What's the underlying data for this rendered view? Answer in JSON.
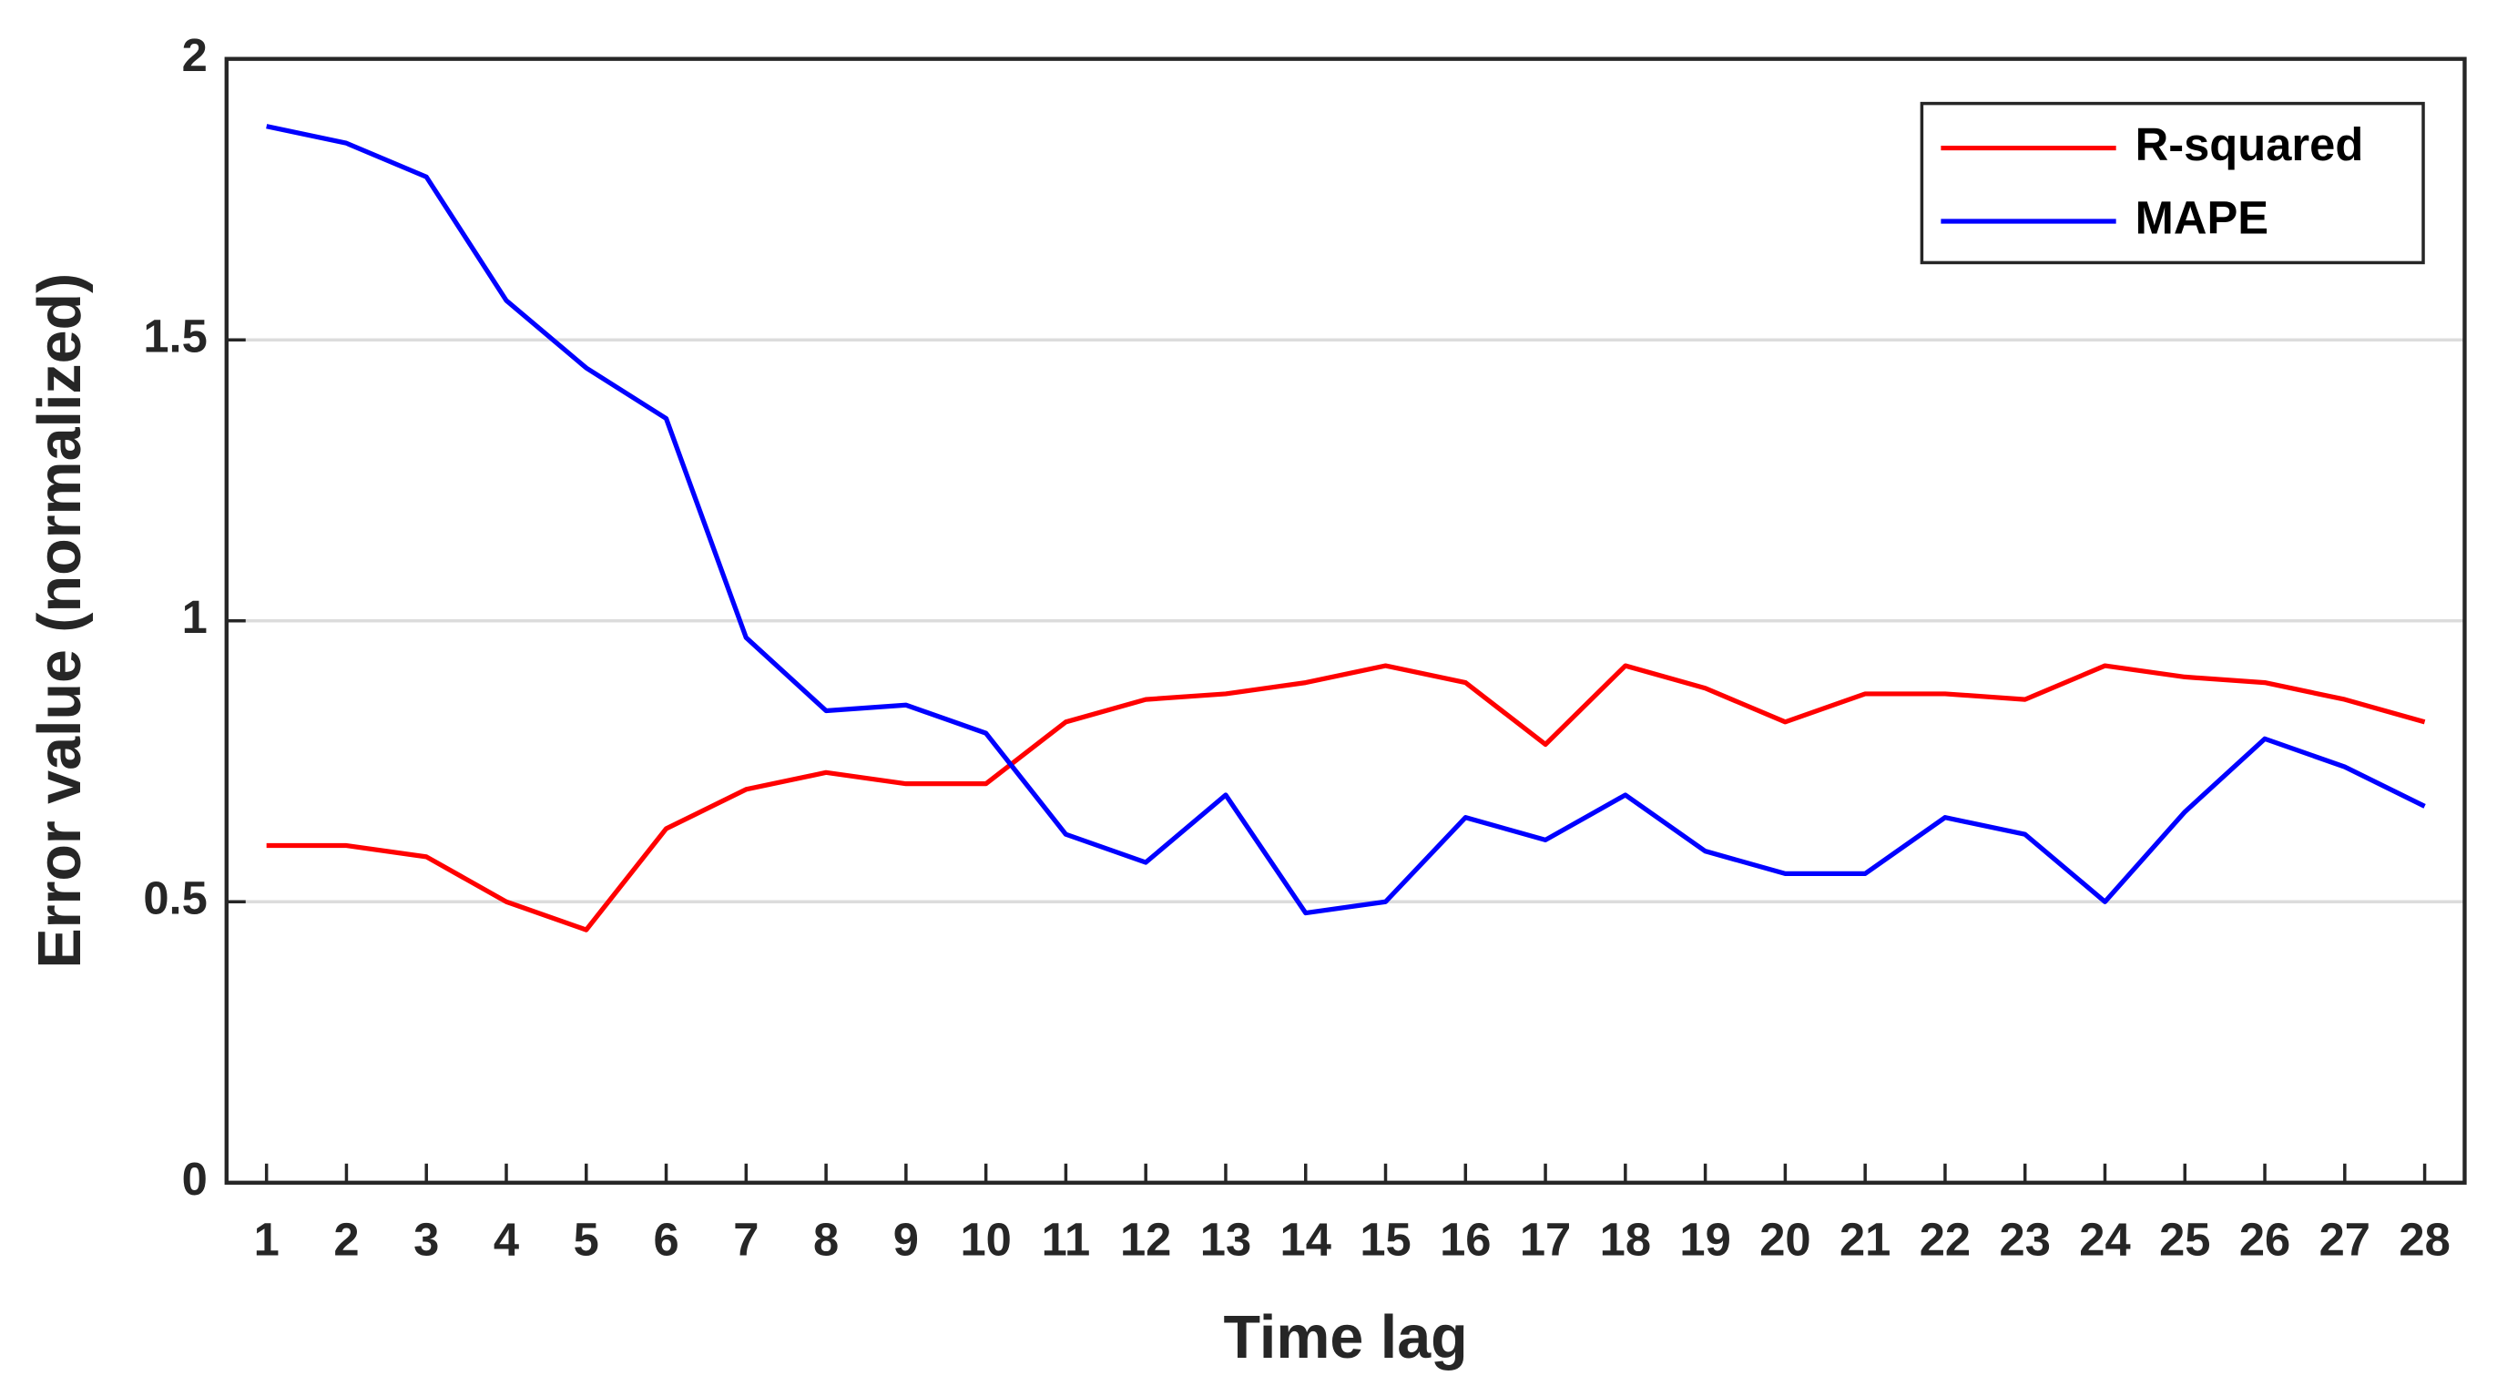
{
  "chart_data": {
    "type": "line",
    "xlabel": "Time lag",
    "ylabel": "Error value (normalized)",
    "x": [
      1,
      2,
      3,
      4,
      5,
      6,
      7,
      8,
      9,
      10,
      11,
      12,
      13,
      14,
      15,
      16,
      17,
      18,
      19,
      20,
      21,
      22,
      23,
      24,
      25,
      26,
      27,
      28
    ],
    "series": [
      {
        "name": "R-squared",
        "color": "#ff0000",
        "values": [
          0.6,
          0.6,
          0.58,
          0.5,
          0.45,
          0.63,
          0.7,
          0.73,
          0.71,
          0.71,
          0.82,
          0.86,
          0.87,
          0.89,
          0.92,
          0.89,
          0.78,
          0.92,
          0.88,
          0.82,
          0.87,
          0.87,
          0.86,
          0.92,
          0.9,
          0.89,
          0.86,
          0.82
        ]
      },
      {
        "name": "MAPE",
        "color": "#0000ff",
        "values": [
          1.88,
          1.85,
          1.79,
          1.57,
          1.45,
          1.36,
          0.97,
          0.84,
          0.85,
          0.8,
          0.62,
          0.57,
          0.69,
          0.48,
          0.5,
          0.65,
          0.61,
          0.69,
          0.59,
          0.55,
          0.55,
          0.65,
          0.62,
          0.5,
          0.66,
          0.79,
          0.74,
          0.67
        ]
      }
    ],
    "xlim": [
      0.5,
      28.5
    ],
    "xticks": [
      1,
      2,
      3,
      4,
      5,
      6,
      7,
      8,
      9,
      10,
      11,
      12,
      13,
      14,
      15,
      16,
      17,
      18,
      19,
      20,
      21,
      22,
      23,
      24,
      25,
      26,
      27,
      28
    ],
    "ylim": [
      0,
      2
    ],
    "yticks": [
      0,
      0.5,
      1,
      1.5,
      2
    ],
    "grid": true,
    "legend": "upper right"
  }
}
